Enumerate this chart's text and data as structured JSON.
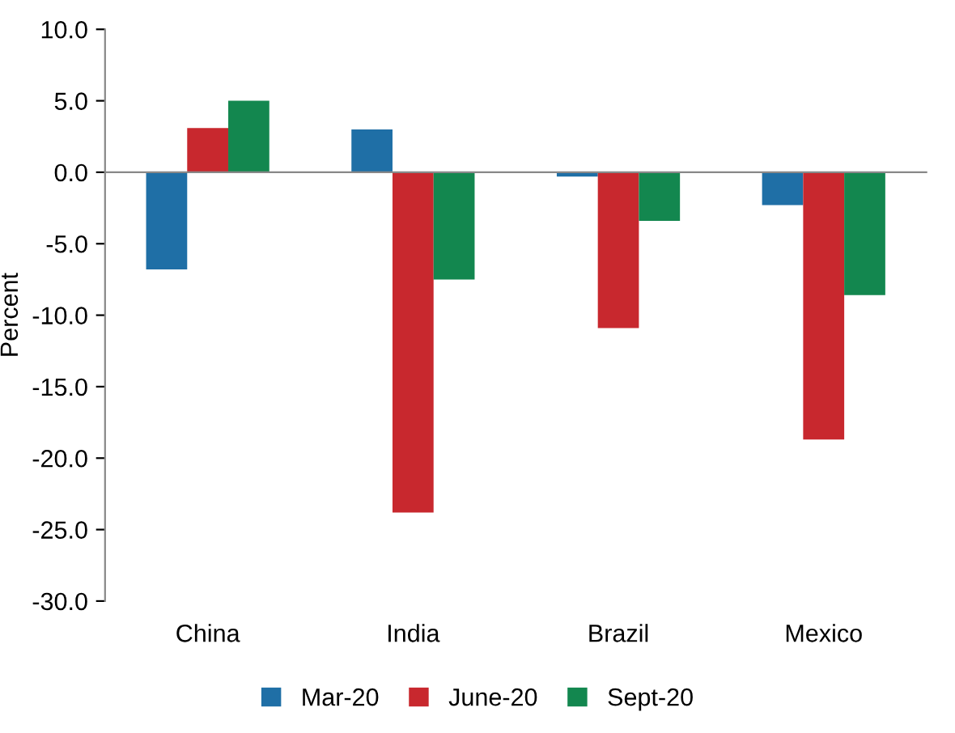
{
  "chart_data": {
    "type": "bar",
    "ylabel": "Percent",
    "categories": [
      "China",
      "India",
      "Brazil",
      "Mexico"
    ],
    "series": [
      {
        "name": "Mar-20",
        "color": "#1f6fa6",
        "values": [
          -6.8,
          3.0,
          -0.3,
          -2.3
        ]
      },
      {
        "name": "June-20",
        "color": "#c8282e",
        "values": [
          3.1,
          -23.8,
          -10.9,
          -18.7
        ]
      },
      {
        "name": "Sept-20",
        "color": "#13874f",
        "values": [
          5.0,
          -7.5,
          -3.4,
          -8.6
        ]
      }
    ],
    "ylim": [
      -30,
      10
    ],
    "yticks": [
      {
        "value": -30,
        "label": "-30.0"
      },
      {
        "value": -25,
        "label": "-25.0"
      },
      {
        "value": -20,
        "label": "-20.0"
      },
      {
        "value": -15,
        "label": "-15.0"
      },
      {
        "value": -10,
        "label": "-10.0"
      },
      {
        "value": -5,
        "label": "-5.0"
      },
      {
        "value": 0,
        "label": "0.0"
      },
      {
        "value": 5,
        "label": "5.0"
      },
      {
        "value": 10,
        "label": "10.0"
      }
    ],
    "legend": "bottom"
  }
}
